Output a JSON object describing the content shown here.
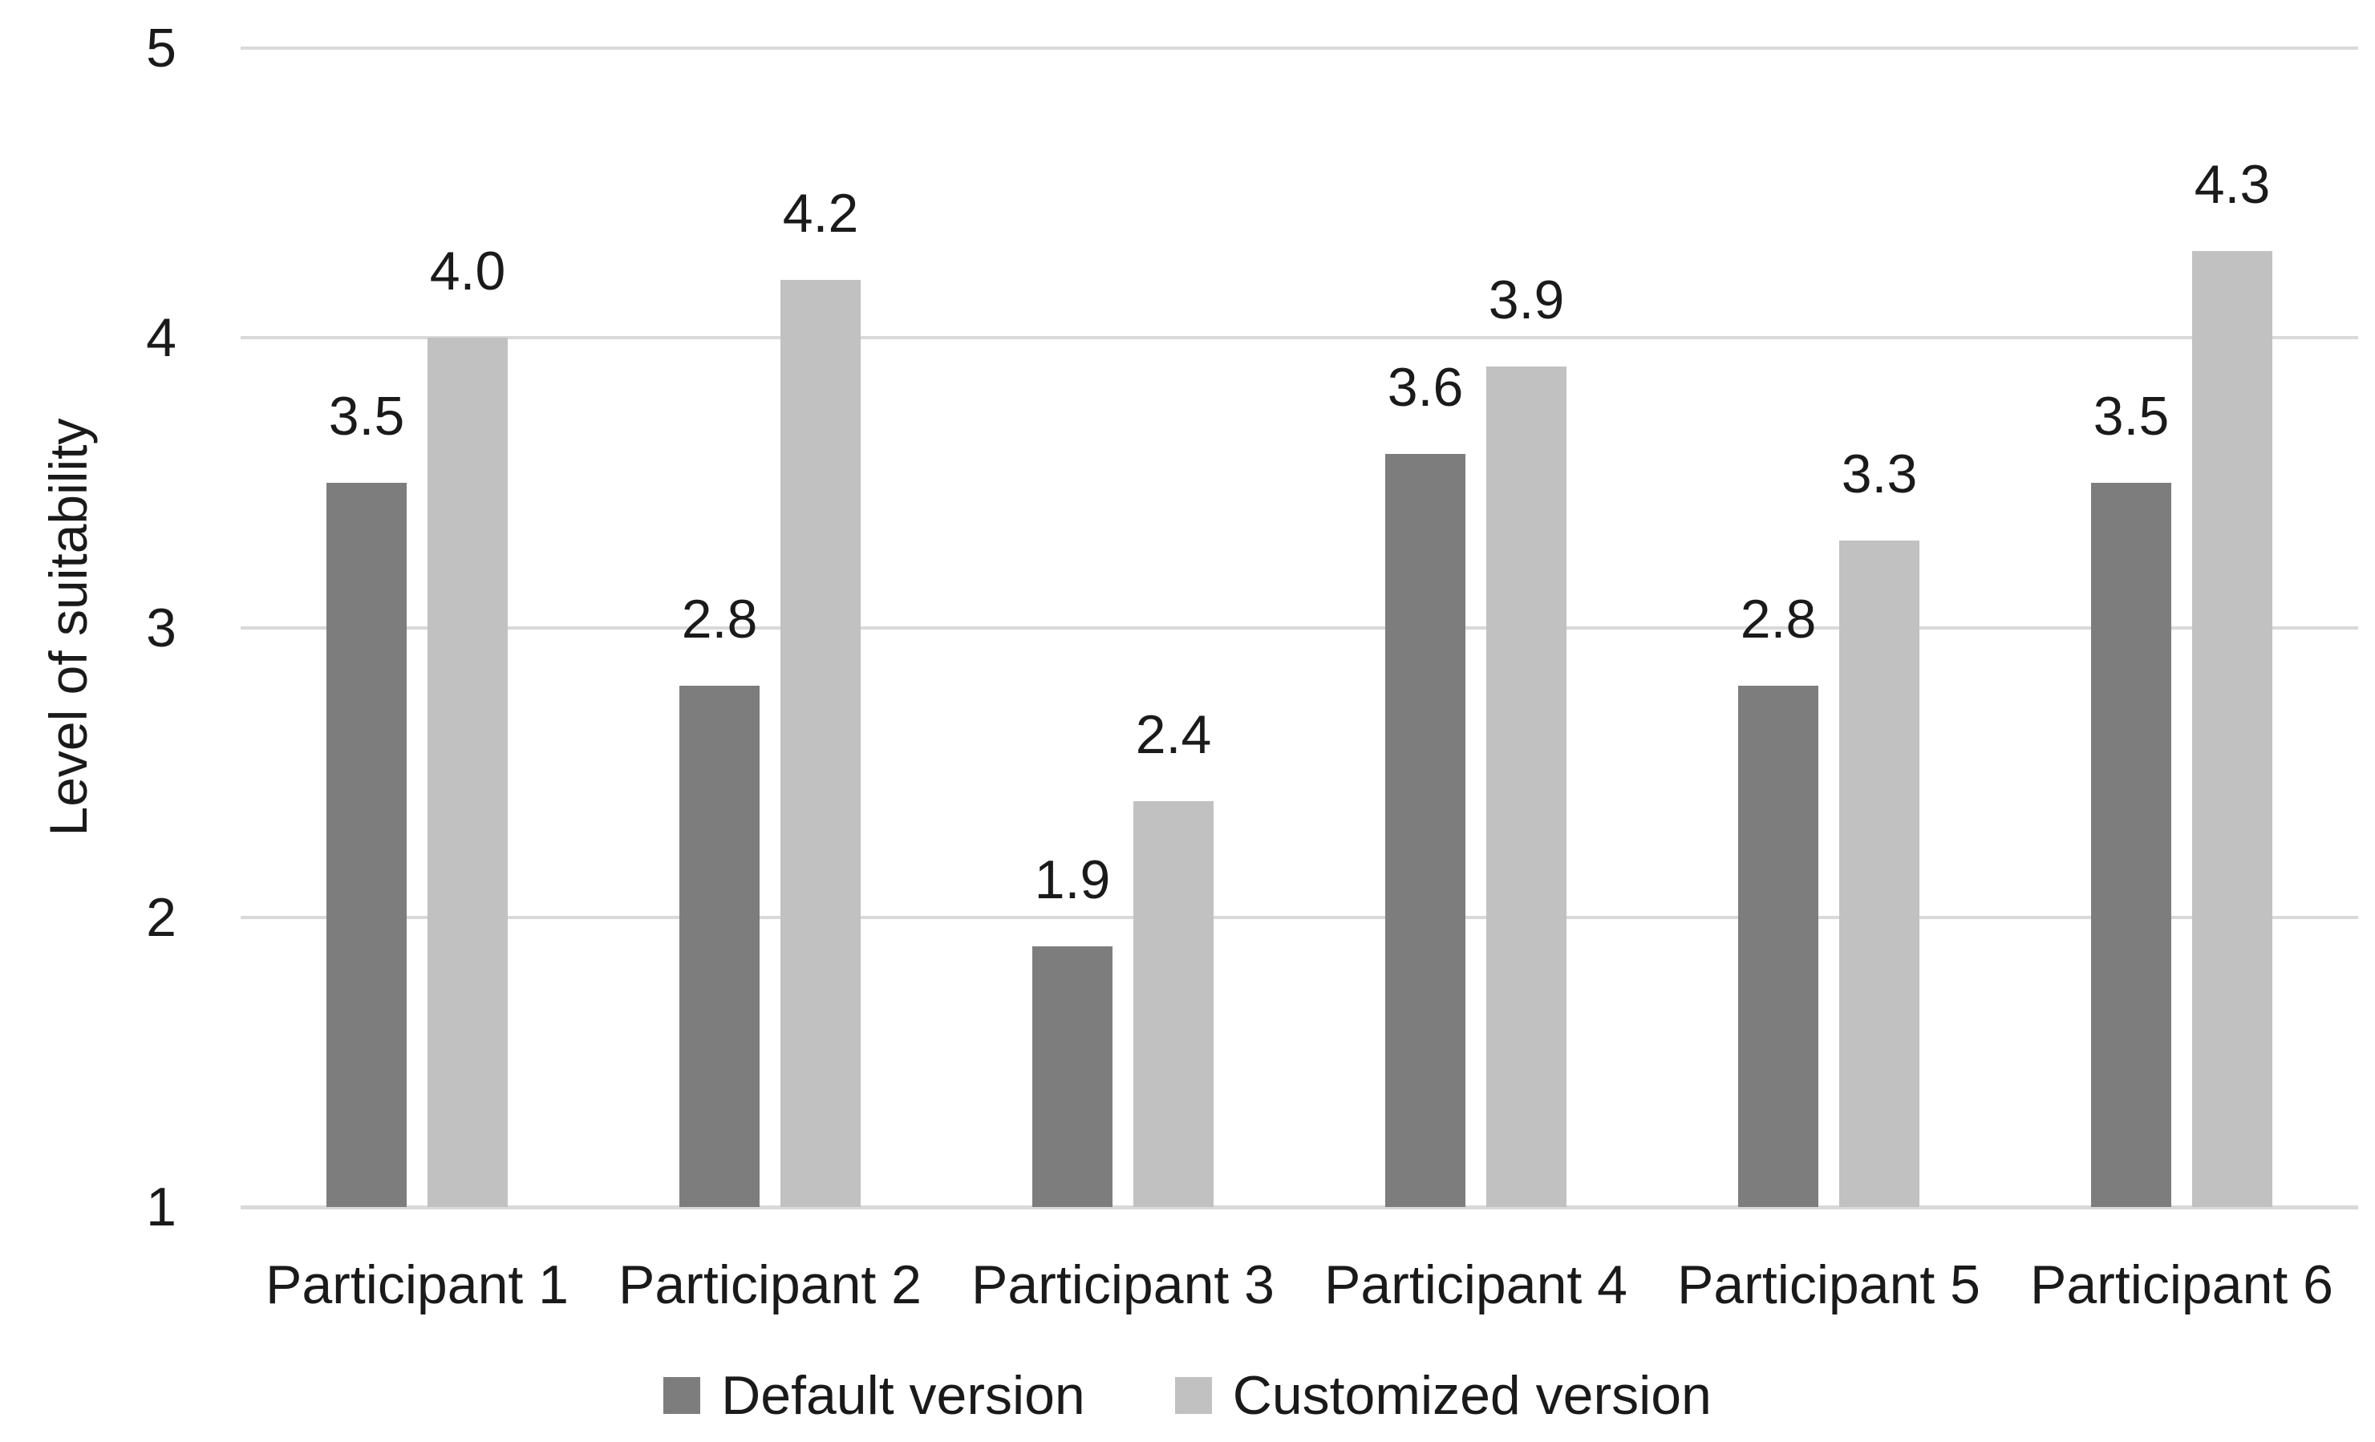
{
  "colors": {
    "background": "#FFFFFF",
    "gridline": "#D9D9D9",
    "axis_line": "#D9D9D9",
    "text": "#1A1A1A",
    "series_default": "#7D7D7D",
    "series_customized": "#C1C1C1"
  },
  "chart_data": {
    "type": "bar",
    "title": "",
    "ylabel": "Level of suitability",
    "xlabel": "",
    "ylim": [
      1,
      5
    ],
    "yticks": [
      5,
      4,
      3,
      2,
      1
    ],
    "grid": true,
    "legend_position": "bottom-center",
    "categories": [
      "Participant 1",
      "Participant 2",
      "Participant 3",
      "Participant 4",
      "Participant 5",
      "Participant 6"
    ],
    "series": [
      {
        "name": "Default version",
        "color": "#7D7D7D",
        "values": [
          3.5,
          2.8,
          1.9,
          3.6,
          2.8,
          3.5
        ],
        "labels": [
          "3.5",
          "2.8",
          "1.9",
          "3.6",
          "2.8",
          "3.5"
        ]
      },
      {
        "name": "Customized version",
        "color": "#C1C1C1",
        "values": [
          4.0,
          4.2,
          2.4,
          3.9,
          3.3,
          4.3
        ],
        "labels": [
          "4.0",
          "4.2",
          "2.4",
          "3.9",
          "3.3",
          "4.3"
        ]
      }
    ]
  }
}
